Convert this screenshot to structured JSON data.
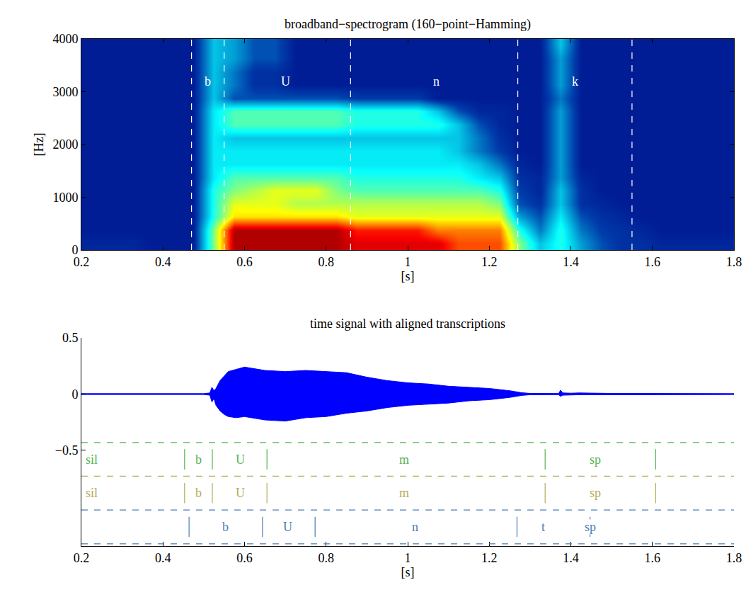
{
  "chart_data": [
    {
      "type": "heatmap",
      "title": "broadband−spectrogram (160−point−Hamming)",
      "x_label": "[s]",
      "y_label": "[Hz]",
      "grid": false,
      "xlim": [
        0.2,
        1.8
      ],
      "xticks": [
        0.2,
        0.4,
        0.6,
        0.8,
        1,
        1.2,
        1.4,
        1.6,
        1.8
      ],
      "ylim": [
        0,
        4000
      ],
      "yticks": [
        0,
        1000,
        2000,
        3000,
        4000
      ],
      "zlim": [
        0,
        10
      ],
      "x": [
        0.225,
        0.275,
        0.325,
        0.375,
        0.425,
        0.475,
        0.525,
        0.575,
        0.625,
        0.675,
        0.725,
        0.775,
        0.825,
        0.875,
        0.925,
        0.975,
        1.025,
        1.075,
        1.125,
        1.175,
        1.225,
        1.275,
        1.325,
        1.375,
        1.425,
        1.475,
        1.525,
        1.575,
        1.625,
        1.675,
        1.725,
        1.775
      ],
      "y": [
        125,
        375,
        625,
        875,
        1125,
        1375,
        1625,
        1875,
        2125,
        2375,
        2625,
        2875,
        3125,
        3375,
        3625,
        3875
      ],
      "z": [
        [
          0.8,
          0.8,
          0.8,
          0.6,
          0.6,
          0.6,
          5,
          9.5,
          9.5,
          9.5,
          9.5,
          9.5,
          9.5,
          9,
          9,
          9,
          9,
          9,
          8,
          8,
          8,
          5,
          3,
          4,
          2.5,
          1.5,
          1,
          1,
          0.8,
          0.8,
          0.8,
          0.8
        ],
        [
          0.6,
          0.6,
          0.6,
          0.6,
          0.6,
          0.6,
          5,
          9.5,
          9.5,
          9.5,
          9.5,
          9.5,
          9.5,
          8.5,
          8.5,
          8.5,
          8.5,
          7.5,
          7.5,
          7.5,
          7.5,
          4,
          2,
          4,
          2,
          1.2,
          1,
          0.8,
          0.6,
          0.6,
          0.6,
          0.6
        ],
        [
          0.6,
          0.6,
          0.6,
          0.6,
          0.6,
          0.6,
          4,
          6.5,
          6.5,
          6.5,
          6.5,
          6.5,
          6.5,
          6,
          6,
          6,
          6,
          6,
          6,
          6,
          6,
          2.5,
          1.5,
          3.5,
          1.5,
          1,
          0.8,
          0.6,
          0.6,
          0.6,
          0.6,
          0.6
        ],
        [
          0.6,
          0.6,
          0.6,
          0.6,
          0.6,
          0.6,
          4,
          6,
          6,
          6,
          5.5,
          5.5,
          5.5,
          5.5,
          5.5,
          5.5,
          5.5,
          5.5,
          5.5,
          5.5,
          5,
          1.5,
          1,
          3,
          1,
          0.8,
          0.6,
          0.6,
          0.6,
          0.6,
          0.6,
          0.6
        ],
        [
          0.6,
          0.6,
          0.6,
          0.6,
          0.6,
          0.6,
          4,
          5,
          5.5,
          6,
          6,
          6,
          5,
          4.5,
          4.5,
          4.5,
          4.5,
          4.5,
          4.5,
          4.5,
          4,
          1.2,
          0.8,
          3,
          1,
          0.6,
          0.6,
          0.6,
          0.6,
          0.6,
          0.6,
          0.6
        ],
        [
          0.6,
          0.6,
          0.6,
          0.6,
          0.6,
          0.6,
          3.5,
          4.5,
          4.5,
          4.5,
          4.5,
          4.5,
          4.5,
          4,
          4,
          4,
          4,
          4,
          4,
          3.5,
          3,
          1,
          0.8,
          2.5,
          0.8,
          0.6,
          0.6,
          0.6,
          0.6,
          0.6,
          0.6,
          0.6
        ],
        [
          0.6,
          0.6,
          0.6,
          0.6,
          0.6,
          0.6,
          3.5,
          3.5,
          3.5,
          3.5,
          3.5,
          3.5,
          3.5,
          3.5,
          3.5,
          3.5,
          3.5,
          3.5,
          3.5,
          3,
          2,
          0.8,
          0.6,
          2.5,
          0.6,
          0.6,
          0.6,
          0.6,
          0.6,
          0.6,
          0.6,
          0.6
        ],
        [
          0.6,
          0.6,
          0.6,
          0.6,
          0.6,
          0.6,
          3.5,
          3.5,
          3.5,
          3.5,
          3.5,
          3.5,
          3.5,
          3.5,
          3.5,
          3.5,
          3.5,
          3.5,
          3,
          2,
          1.2,
          0.6,
          0.6,
          2.5,
          0.6,
          0.6,
          0.6,
          0.6,
          0.6,
          0.6,
          0.6,
          0.6
        ],
        [
          0.6,
          0.6,
          0.6,
          0.6,
          0.6,
          0.6,
          3.5,
          3,
          3,
          3,
          3,
          3,
          3,
          3,
          3,
          3,
          3,
          3,
          3,
          2,
          1,
          0.6,
          0.6,
          2.5,
          0.6,
          0.6,
          0.6,
          0.6,
          0.6,
          0.6,
          0.6,
          0.6
        ],
        [
          0.6,
          0.6,
          0.6,
          0.6,
          0.6,
          0.6,
          3.5,
          4.5,
          4.5,
          4.5,
          4.5,
          4.5,
          4.5,
          4,
          4,
          4,
          4,
          4,
          3,
          1.5,
          0.8,
          0.6,
          0.6,
          2.5,
          0.6,
          0.6,
          0.6,
          0.6,
          0.6,
          0.6,
          0.6,
          0.6
        ],
        [
          0.6,
          0.6,
          0.6,
          0.6,
          0.6,
          0.6,
          3.5,
          4.5,
          4.5,
          4.5,
          4.5,
          4.5,
          4.5,
          4,
          4,
          4,
          4,
          3,
          1.5,
          0.8,
          0.8,
          0.6,
          0.6,
          2.5,
          0.6,
          0.6,
          0.6,
          0.6,
          0.6,
          0.6,
          0.6,
          0.6
        ],
        [
          0.6,
          0.6,
          0.6,
          0.6,
          0.6,
          0.6,
          3,
          1.5,
          1.5,
          1.5,
          1.5,
          1.5,
          1.5,
          1.2,
          1.2,
          1.2,
          1.2,
          0.6,
          0.6,
          0.6,
          0.6,
          0.6,
          0.6,
          2,
          0.6,
          0.6,
          0.6,
          0.6,
          0.6,
          0.6,
          0.6,
          0.6
        ],
        [
          0.6,
          0.6,
          0.6,
          0.6,
          0.6,
          0.6,
          3,
          2,
          1,
          1,
          0.6,
          0.6,
          0.6,
          0.6,
          0.6,
          0.6,
          0.6,
          0.6,
          0.6,
          0.6,
          0.6,
          0.6,
          0.6,
          2.5,
          0.6,
          0.6,
          0.6,
          0.6,
          0.6,
          0.6,
          0.6,
          0.6
        ],
        [
          0.6,
          0.6,
          0.6,
          0.6,
          0.6,
          0.6,
          3,
          2,
          1,
          1,
          0.6,
          0.6,
          0.6,
          0.6,
          0.6,
          0.6,
          0.6,
          0.6,
          0.6,
          0.6,
          0.6,
          0.6,
          0.6,
          2.5,
          0.6,
          0.6,
          0.6,
          0.6,
          0.6,
          0.6,
          0.6,
          0.6
        ],
        [
          0.6,
          0.6,
          0.6,
          0.6,
          0.6,
          0.6,
          3,
          2.5,
          1.5,
          1.5,
          0.6,
          0.6,
          0.6,
          0.6,
          0.6,
          0.6,
          0.6,
          0.6,
          0.6,
          0.6,
          0.6,
          0.6,
          0.6,
          2.5,
          0.6,
          0.6,
          0.6,
          0.6,
          0.6,
          0.6,
          0.6,
          0.6
        ],
        [
          0.6,
          0.6,
          0.6,
          0.6,
          0.6,
          0.6,
          3,
          2.5,
          1.5,
          1.5,
          0.6,
          0.6,
          0.6,
          0.6,
          0.6,
          0.6,
          0.6,
          0.6,
          0.6,
          0.6,
          0.6,
          0.6,
          0.6,
          3,
          0.6,
          0.6,
          0.6,
          0.6,
          0.6,
          0.6,
          0.6,
          0.6
        ]
      ],
      "boundaries": [
        0.47,
        0.55,
        0.86,
        1.27,
        1.55
      ],
      "label_y": 3200,
      "segment_labels": [
        {
          "text": "b",
          "x": 0.51
        },
        {
          "text": "U",
          "x": 0.7
        },
        {
          "text": "n",
          "x": 1.07
        },
        {
          "text": "k",
          "x": 1.41
        }
      ]
    },
    {
      "type": "area",
      "title": "time signal with aligned transcriptions",
      "x_label": "[s]",
      "grid": false,
      "color": "#0000ff",
      "xlim": [
        0.2,
        1.8
      ],
      "xticks": [
        0.2,
        0.4,
        0.6,
        0.8,
        1,
        1.2,
        1.4,
        1.6,
        1.8
      ],
      "ylim": [
        -1.35,
        0.5
      ],
      "yticks": [
        -0.5,
        0,
        0.5
      ],
      "x": [
        0.2,
        0.5,
        0.515,
        0.52,
        0.525,
        0.53,
        0.54,
        0.55,
        0.56,
        0.58,
        0.6,
        0.65,
        0.7,
        0.75,
        0.8,
        0.85,
        0.9,
        0.95,
        1.0,
        1.05,
        1.1,
        1.15,
        1.2,
        1.25,
        1.28,
        1.3,
        1.37,
        1.375,
        1.38,
        1.4,
        1.42,
        1.5,
        1.8
      ],
      "upper": [
        0.004,
        0.004,
        0.01,
        0.06,
        0.03,
        0.05,
        0.12,
        0.16,
        0.2,
        0.22,
        0.24,
        0.21,
        0.2,
        0.21,
        0.2,
        0.19,
        0.15,
        0.12,
        0.1,
        0.09,
        0.07,
        0.06,
        0.05,
        0.03,
        0.012,
        0.006,
        0.005,
        0.035,
        0.01,
        0.008,
        0.01,
        0.006,
        0.004
      ],
      "lower": [
        -0.004,
        -0.004,
        -0.01,
        -0.07,
        -0.04,
        -0.1,
        -0.15,
        -0.18,
        -0.2,
        -0.21,
        -0.2,
        -0.23,
        -0.24,
        -0.21,
        -0.2,
        -0.17,
        -0.15,
        -0.12,
        -0.1,
        -0.09,
        -0.08,
        -0.06,
        -0.05,
        -0.03,
        -0.012,
        -0.006,
        -0.005,
        -0.02,
        -0.01,
        -0.008,
        -0.006,
        -0.006,
        -0.004
      ],
      "tiers": [
        {
          "color": "#55b355",
          "top": -0.43,
          "bottom": -0.73,
          "label_y": -0.58,
          "boundaries": [
            0.453,
            0.521,
            0.655,
            1.337,
            1.608
          ],
          "labels": [
            {
              "text": "sil",
              "x": 0.226
            },
            {
              "text": "b",
              "x": 0.487
            },
            {
              "text": "U",
              "x": 0.59
            },
            {
              "text": "m",
              "x": 0.991
            },
            {
              "text": "sp",
              "x": 1.46
            }
          ]
        },
        {
          "color": "#b3ad5a",
          "top": -0.73,
          "bottom": -1.03,
          "label_y": -0.88,
          "boundaries": [
            0.453,
            0.521,
            0.655,
            1.337,
            1.608
          ],
          "labels": [
            {
              "text": "sil",
              "x": 0.226
            },
            {
              "text": "b",
              "x": 0.487
            },
            {
              "text": "U",
              "x": 0.59
            },
            {
              "text": "m",
              "x": 0.991
            },
            {
              "text": "sp",
              "x": 1.46
            }
          ]
        },
        {
          "color": "#4a7db5",
          "top": -1.03,
          "bottom": -1.33,
          "label_y": -1.18,
          "boundaries": [
            0.464,
            0.644,
            0.773,
            1.268,
            1.447
          ],
          "labels": [
            {
              "text": "b",
              "x": 0.553
            },
            {
              "text": "U",
              "x": 0.705
            },
            {
              "text": "n",
              "x": 1.019
            },
            {
              "text": "t",
              "x": 1.332
            },
            {
              "text": "sp",
              "x": 1.447
            }
          ]
        }
      ]
    }
  ]
}
